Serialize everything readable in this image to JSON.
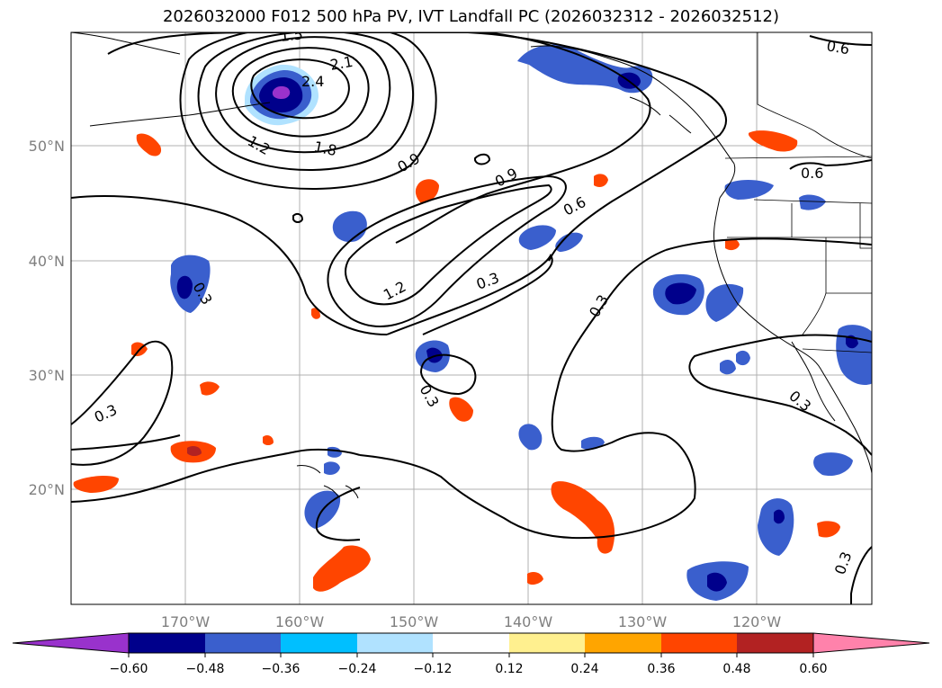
{
  "title": "2026032000 F012 500 hPa PV, IVT Landfall PC (2026032312 - 2026032512)",
  "latitude_labels": [
    "50°N",
    "40°N",
    "30°N",
    "20°N"
  ],
  "longitude_labels": [
    "170°W",
    "160°W",
    "150°W",
    "140°W",
    "130°W",
    "120°W"
  ],
  "contour_labels": [
    "2.1",
    "2.4",
    "1.2",
    "1.8",
    "1.5",
    "0.9",
    "0.9",
    "0.6",
    "0.6",
    "0.6",
    "1.2",
    "0.3",
    "0.3",
    "0.3",
    "0.3",
    "0.3",
    "0.3",
    "0.3"
  ],
  "colorbar": {
    "ticks": [
      "−0.60",
      "−0.48",
      "−0.36",
      "−0.24",
      "−0.12",
      "0.12",
      "0.24",
      "0.36",
      "0.48",
      "0.60"
    ],
    "colors": [
      "#9932cc",
      "#00008b",
      "#3a5fcd",
      "#00bfff",
      "#b0e2ff",
      "#ffffff",
      "#fff08f",
      "#ffa500",
      "#ff4500",
      "#b22222",
      "#ff82ab"
    ]
  },
  "colors": {
    "positive_light": "#fff08f",
    "positive_orange": "#ffa500",
    "positive_red": "#ff4500",
    "negative_light": "#b0e2ff",
    "negative_cyan": "#00bfff",
    "negative_blue": "#3a5fcd",
    "negative_dark": "#00008b",
    "negative_purple": "#9932cc",
    "gridline": "#b0b0b0",
    "label_gray": "#7f7f7f"
  }
}
